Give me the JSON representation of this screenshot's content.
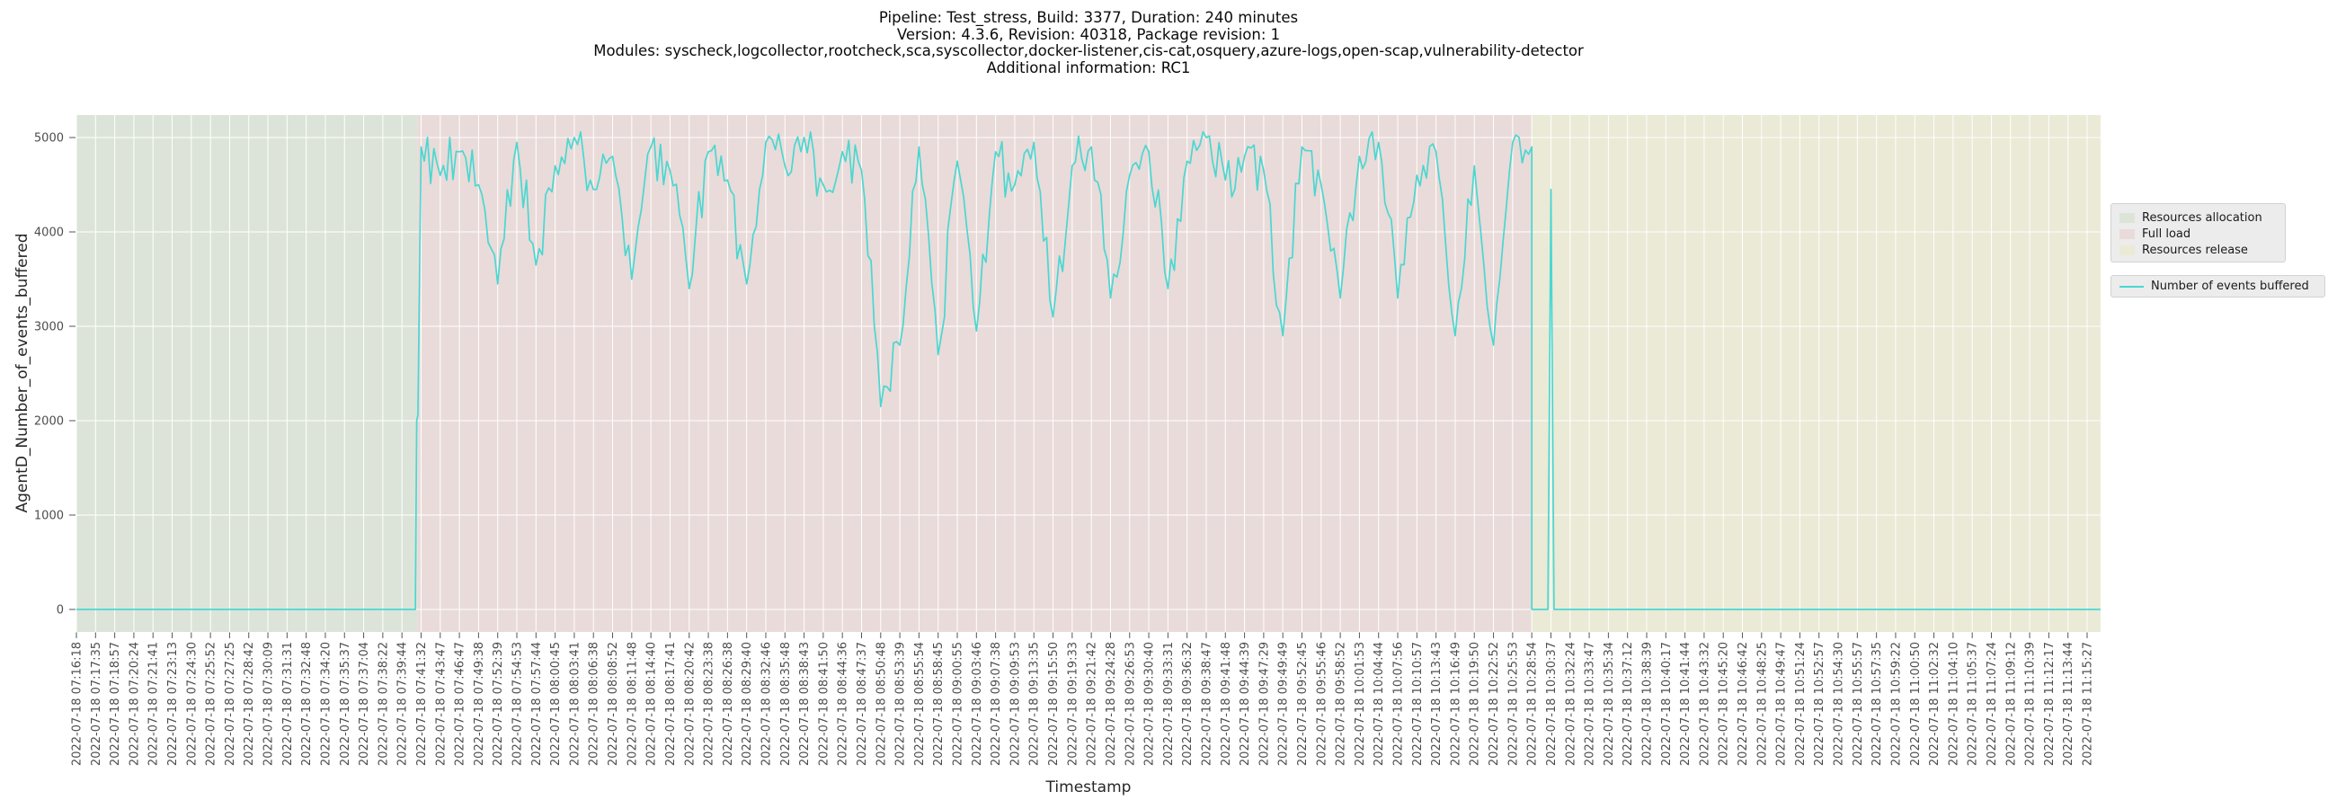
{
  "title": {
    "lines": [
      "Pipeline: Test_stress, Build: 3377, Duration: 240 minutes",
      "Version: 4.3.6, Revision: 40318, Package revision: 1",
      "Modules: syscheck,logcollector,rootcheck,sca,syscollector,docker-listener,cis-cat,osquery,azure-logs,open-scap,vulnerability-detector",
      "Additional information: RC1"
    ]
  },
  "axes": {
    "xlabel": "Timestamp",
    "ylabel": "AgentD_Number_of_events_buffered"
  },
  "legend": {
    "region_entries": [
      {
        "label": "Resources allocation",
        "color": "#dce4d9"
      },
      {
        "label": "Full load",
        "color": "#e9dbd9"
      },
      {
        "label": "Resources release",
        "color": "#eaead6"
      }
    ],
    "series_entry": {
      "label": "Number of events buffered",
      "color": "#4ad7d1"
    }
  },
  "colors": {
    "background": "#ffffff",
    "grid": "#ffffff",
    "tick_label": "#4d4d4d",
    "tick_mark": "#555555",
    "title_text": "#0a0a0a",
    "legend_bg": "#ececec",
    "legend_border": "#d2d2d2"
  },
  "chart_data": {
    "type": "line",
    "title_lines": [
      "Pipeline: Test_stress, Build: 3377, Duration: 240 minutes",
      "Version: 4.3.6, Revision: 40318, Package revision: 1",
      "Modules: syscheck,logcollector,rootcheck,sca,syscollector,docker-listener,cis-cat,osquery,azure-logs,open-scap,vulnerability-detector",
      "Additional information: RC1"
    ],
    "xlabel": "Timestamp",
    "ylabel": "AgentD_Number_of_events_buffered",
    "yticks": [
      0,
      1000,
      2000,
      3000,
      4000,
      5000
    ],
    "ylim": [
      -240,
      5240
    ],
    "grid": true,
    "grid_color": "#ffffff",
    "legend_position": "outside right",
    "x_date_prefix": "2022-07-18",
    "x_tick_times": [
      "07:16:18",
      "07:17:35",
      "07:18:57",
      "07:20:24",
      "07:21:41",
      "07:23:13",
      "07:24:30",
      "07:25:52",
      "07:27:25",
      "07:28:42",
      "07:30:09",
      "07:31:31",
      "07:32:48",
      "07:34:20",
      "07:35:37",
      "07:37:04",
      "07:38:22",
      "07:39:44",
      "07:41:32",
      "07:43:47",
      "07:46:47",
      "07:49:38",
      "07:52:39",
      "07:54:53",
      "07:57:44",
      "08:00:45",
      "08:03:41",
      "08:06:38",
      "08:08:52",
      "08:11:48",
      "08:14:40",
      "08:17:41",
      "08:20:42",
      "08:23:38",
      "08:26:38",
      "08:29:40",
      "08:32:46",
      "08:35:48",
      "08:38:43",
      "08:41:50",
      "08:44:36",
      "08:47:37",
      "08:50:48",
      "08:53:39",
      "08:55:54",
      "08:58:45",
      "09:00:55",
      "09:03:46",
      "09:07:38",
      "09:09:53",
      "09:13:35",
      "09:15:50",
      "09:19:33",
      "09:21:42",
      "09:24:28",
      "09:26:53",
      "09:30:40",
      "09:33:31",
      "09:36:32",
      "09:38:47",
      "09:41:48",
      "09:44:39",
      "09:47:29",
      "09:49:49",
      "09:52:45",
      "09:55:46",
      "09:58:52",
      "10:01:53",
      "10:04:44",
      "10:07:56",
      "10:10:57",
      "10:13:43",
      "10:16:49",
      "10:19:50",
      "10:22:52",
      "10:25:53",
      "10:28:54",
      "10:30:37",
      "10:32:24",
      "10:33:47",
      "10:35:34",
      "10:37:12",
      "10:38:39",
      "10:40:17",
      "10:41:44",
      "10:43:32",
      "10:45:20",
      "10:46:42",
      "10:48:25",
      "10:49:47",
      "10:51:24",
      "10:52:57",
      "10:54:30",
      "10:55:57",
      "10:57:35",
      "10:59:22",
      "11:00:50",
      "11:02:32",
      "11:04:10",
      "11:05:37",
      "11:07:24",
      "11:09:12",
      "11:10:39",
      "11:12:17",
      "11:13:44",
      "11:15:27"
    ],
    "series": [
      {
        "name": "Number of events buffered",
        "color": "#4ad7d1",
        "values_per_tick": [
          0,
          0,
          0,
          0,
          0,
          0,
          0,
          0,
          0,
          0,
          0,
          0,
          0,
          0,
          0,
          0,
          0,
          0,
          4900,
          4600,
          4850,
          4500,
          3450,
          4950,
          3650,
          4700,
          5000,
          4450,
          4800,
          3500,
          4900,
          4650,
          3400,
          4850,
          4550,
          3450,
          4950,
          4700,
          5000,
          4500,
          4850,
          4650,
          2150,
          2800,
          4900,
          2700,
          4750,
          2950,
          4850,
          4500,
          4950,
          3100,
          4700,
          4900,
          3300,
          4600,
          4850,
          3400,
          4750,
          5000,
          4550,
          4800,
          4650,
          2900,
          4900,
          4500,
          3300,
          4800,
          4950,
          3300,
          4600,
          4850,
          2900,
          4700,
          2800,
          4950,
          0,
          4450,
          0,
          0,
          0,
          0,
          0,
          0,
          0,
          0,
          0,
          0,
          0,
          0,
          0,
          0,
          0,
          0,
          0,
          0,
          0,
          0,
          0,
          0,
          0,
          0,
          0,
          0,
          0,
          0
        ]
      }
    ],
    "regions": [
      {
        "label": "Resources allocation",
        "color": "#dce4d9",
        "start_tick": 0,
        "end_tick": 17.8
      },
      {
        "label": "Full load",
        "color": "#e9dbd9",
        "start_tick": 17.8,
        "end_tick": 76
      },
      {
        "label": "Resources release",
        "color": "#eaead6",
        "start_tick": 76,
        "end_tick": 105.7
      }
    ],
    "full_load": {
      "start_tick": 18,
      "end_tick": 76,
      "band_min": 4300,
      "band_max": 5060,
      "end_value": 4900,
      "rise_step_value": 2000,
      "noise_amplitude": 330
    },
    "release_spike": {
      "time": "10:30:37",
      "tick_index": 77,
      "value": 4450,
      "half_width_ticks": 0.16
    }
  }
}
